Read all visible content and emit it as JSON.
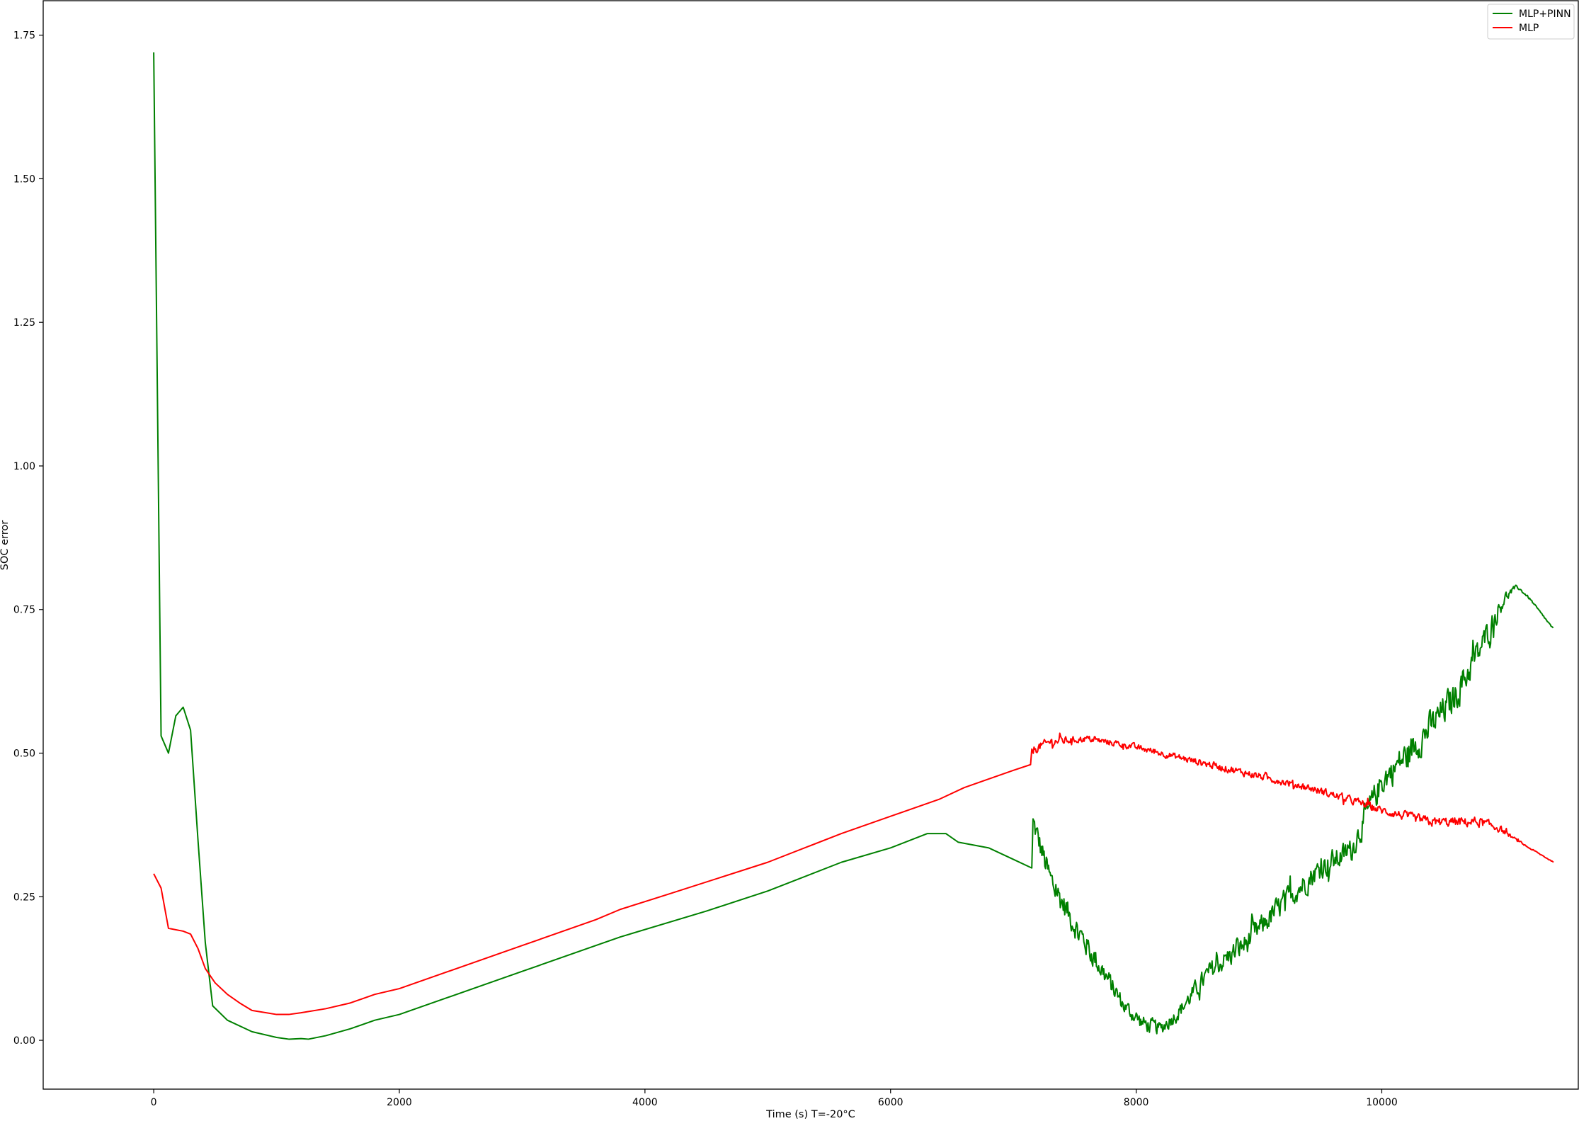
{
  "chart_data": {
    "type": "line",
    "xlabel": "Time (s) T=-20°C",
    "ylabel": "SOC error",
    "xlim": [
      -900,
      11600
    ],
    "ylim": [
      -0.085,
      1.81
    ],
    "xticks": [
      0,
      2000,
      4000,
      6000,
      8000,
      10000
    ],
    "xtick_labels": [
      "0",
      "2000",
      "4000",
      "6000",
      "8000",
      "10000"
    ],
    "yticks": [
      0.0,
      0.25,
      0.5,
      0.75,
      1.0,
      1.25,
      1.5,
      1.75
    ],
    "ytick_labels": [
      "0.00",
      "0.25",
      "0.50",
      "0.75",
      "1.00",
      "1.25",
      "1.50",
      "1.75"
    ],
    "grid": false,
    "legend_position": "top-right",
    "series": [
      {
        "name": "MLP+PINN",
        "color": "#008000",
        "points": [
          [
            0,
            1.72
          ],
          [
            60,
            0.53
          ],
          [
            120,
            0.5
          ],
          [
            180,
            0.565
          ],
          [
            240,
            0.58
          ],
          [
            300,
            0.54
          ],
          [
            360,
            0.35
          ],
          [
            420,
            0.17
          ],
          [
            480,
            0.06
          ],
          [
            600,
            0.035
          ],
          [
            800,
            0.015
          ],
          [
            1000,
            0.005
          ],
          [
            1100,
            0.002
          ],
          [
            1200,
            0.003
          ],
          [
            1260,
            0.002
          ],
          [
            1400,
            0.008
          ],
          [
            1600,
            0.02
          ],
          [
            1800,
            0.035
          ],
          [
            2000,
            0.045
          ],
          [
            2400,
            0.075
          ],
          [
            3000,
            0.12
          ],
          [
            3600,
            0.165
          ],
          [
            3800,
            0.18
          ],
          [
            4500,
            0.225
          ],
          [
            5000,
            0.26
          ],
          [
            5600,
            0.31
          ],
          [
            6000,
            0.335
          ],
          [
            6300,
            0.36
          ],
          [
            6450,
            0.36
          ],
          [
            6550,
            0.345
          ],
          [
            6800,
            0.335
          ],
          [
            7000,
            0.315
          ],
          [
            7150,
            0.3
          ]
        ],
        "noisy_segment": {
          "x": [
            7160,
            7300,
            7500,
            7700,
            7900,
            8050,
            8200,
            8350,
            8600,
            8900,
            9200,
            9500,
            9750,
            9850,
            10000,
            10300,
            10600,
            10800,
            10950,
            11000,
            11100,
            11200,
            11400
          ],
          "y": [
            0.38,
            0.28,
            0.2,
            0.13,
            0.06,
            0.03,
            0.02,
            0.05,
            0.12,
            0.17,
            0.24,
            0.3,
            0.33,
            0.38,
            0.45,
            0.52,
            0.6,
            0.68,
            0.75,
            0.77,
            0.79,
            0.77,
            0.715
          ],
          "noise_amplitude": [
            0.03,
            0.035,
            0.03,
            0.03,
            0.02,
            0.02,
            0.018,
            0.02,
            0.025,
            0.03,
            0.03,
            0.03,
            0.03,
            0.035,
            0.035,
            0.04,
            0.04,
            0.035,
            0.025,
            0.015,
            0.004,
            0.003,
            0.002
          ]
        }
      },
      {
        "name": "MLP",
        "color": "#ff0000",
        "points": [
          [
            0,
            0.29
          ],
          [
            60,
            0.265
          ],
          [
            120,
            0.195
          ],
          [
            240,
            0.19
          ],
          [
            300,
            0.185
          ],
          [
            360,
            0.16
          ],
          [
            420,
            0.125
          ],
          [
            500,
            0.1
          ],
          [
            600,
            0.08
          ],
          [
            700,
            0.065
          ],
          [
            800,
            0.052
          ],
          [
            1000,
            0.045
          ],
          [
            1100,
            0.045
          ],
          [
            1200,
            0.048
          ],
          [
            1400,
            0.055
          ],
          [
            1600,
            0.065
          ],
          [
            1800,
            0.08
          ],
          [
            2000,
            0.09
          ],
          [
            2400,
            0.12
          ],
          [
            3000,
            0.165
          ],
          [
            3600,
            0.21
          ],
          [
            3800,
            0.228
          ],
          [
            4200,
            0.255
          ],
          [
            5000,
            0.31
          ],
          [
            5600,
            0.36
          ],
          [
            6000,
            0.39
          ],
          [
            6400,
            0.42
          ],
          [
            6600,
            0.44
          ],
          [
            7000,
            0.47
          ],
          [
            7140,
            0.48
          ]
        ],
        "noisy_segment": {
          "x": [
            7150,
            7300,
            7600,
            7900,
            8200,
            8600,
            9000,
            9400,
            9800,
            10000,
            10400,
            10800,
            10950,
            11050,
            11200,
            11400
          ],
          "y": [
            0.505,
            0.52,
            0.525,
            0.515,
            0.5,
            0.48,
            0.46,
            0.44,
            0.415,
            0.4,
            0.38,
            0.38,
            0.37,
            0.355,
            0.335,
            0.31
          ],
          "noise_amplitude": [
            0.012,
            0.01,
            0.008,
            0.008,
            0.008,
            0.009,
            0.009,
            0.009,
            0.01,
            0.01,
            0.012,
            0.012,
            0.01,
            0.004,
            0.002,
            0.001
          ]
        }
      }
    ]
  }
}
